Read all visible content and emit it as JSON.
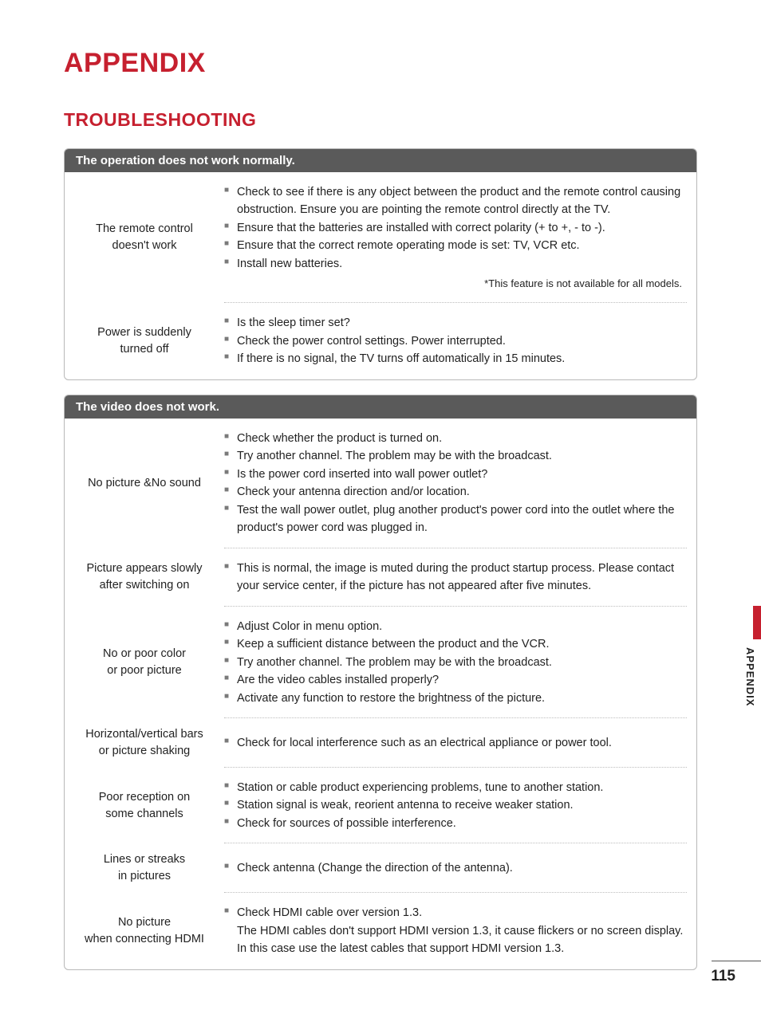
{
  "page": {
    "title": "APPENDIX",
    "subtitle": "TROUBLESHOOTING",
    "sideLabel": "APPENDIX",
    "pageNumber": "115"
  },
  "colors": {
    "accent": "#c6202f",
    "headerBg": "#5a5a5a",
    "headerText": "#ffffff",
    "border": "#b8b8b8",
    "dotted": "#bdbdbd",
    "bullet": "#7a7a7a",
    "text": "#222222",
    "background": "#ffffff"
  },
  "sections": [
    {
      "header": "The operation does not work normally.",
      "rows": [
        {
          "symptom": "The remote control\ndoesn't work",
          "items": [
            "Check to see if there is any object between the product and the remote control causing obstruction. Ensure you are pointing the remote control directly at the TV.",
            "Ensure that the batteries are installed with correct polarity (+ to +, - to -).",
            "Ensure that the correct remote operating mode is set: TV, VCR etc.",
            "Install new batteries."
          ],
          "note": "*This feature is not available for all models."
        },
        {
          "symptom": "Power is suddenly\nturned off",
          "items": [
            "Is the sleep timer set?",
            "Check the power control settings. Power interrupted.",
            "If there is no signal, the TV turns off automatically in 15 minutes."
          ]
        }
      ]
    },
    {
      "header": "The video does not work.",
      "rows": [
        {
          "symptom": "No picture &No sound",
          "items": [
            "Check whether the product is turned on.",
            "Try another channel. The problem may be with the broadcast.",
            "Is the power cord inserted into wall power outlet?",
            "Check your antenna direction and/or location.",
            "Test the wall power outlet, plug another product's power cord into the outlet where the product's power cord was plugged in."
          ]
        },
        {
          "symptom": "Picture appears slowly\nafter switching on",
          "items": [
            "This is normal, the image is muted during the product startup process. Please contact your service center, if the picture has not appeared after five minutes."
          ]
        },
        {
          "symptom": "No or poor color\nor poor picture",
          "items": [
            "Adjust Color in menu option.",
            "Keep a sufficient distance between the product and the VCR.",
            "Try another channel. The problem may be with the broadcast.",
            "Are the video cables installed properly?",
            "Activate any function to restore the brightness of the picture."
          ]
        },
        {
          "symptom": "Horizontal/vertical bars\nor picture shaking",
          "items": [
            "Check for local interference such as an electrical appliance or power tool."
          ]
        },
        {
          "symptom": "Poor reception on\nsome channels",
          "items": [
            "Station or cable product experiencing problems, tune to another station.",
            "Station signal is weak, reorient antenna to receive weaker station.",
            "Check for sources of possible interference."
          ]
        },
        {
          "symptom": "Lines or streaks\nin pictures",
          "items": [
            "Check antenna (Change the direction of the antenna)."
          ]
        },
        {
          "symptom": "No picture\nwhen connecting HDMI",
          "items": [
            "Check HDMI cable over version 1.3.\nThe HDMI cables don't support HDMI version 1.3, it cause flickers or no screen display. In this case use the latest cables that support HDMI version 1.3."
          ]
        }
      ]
    }
  ]
}
